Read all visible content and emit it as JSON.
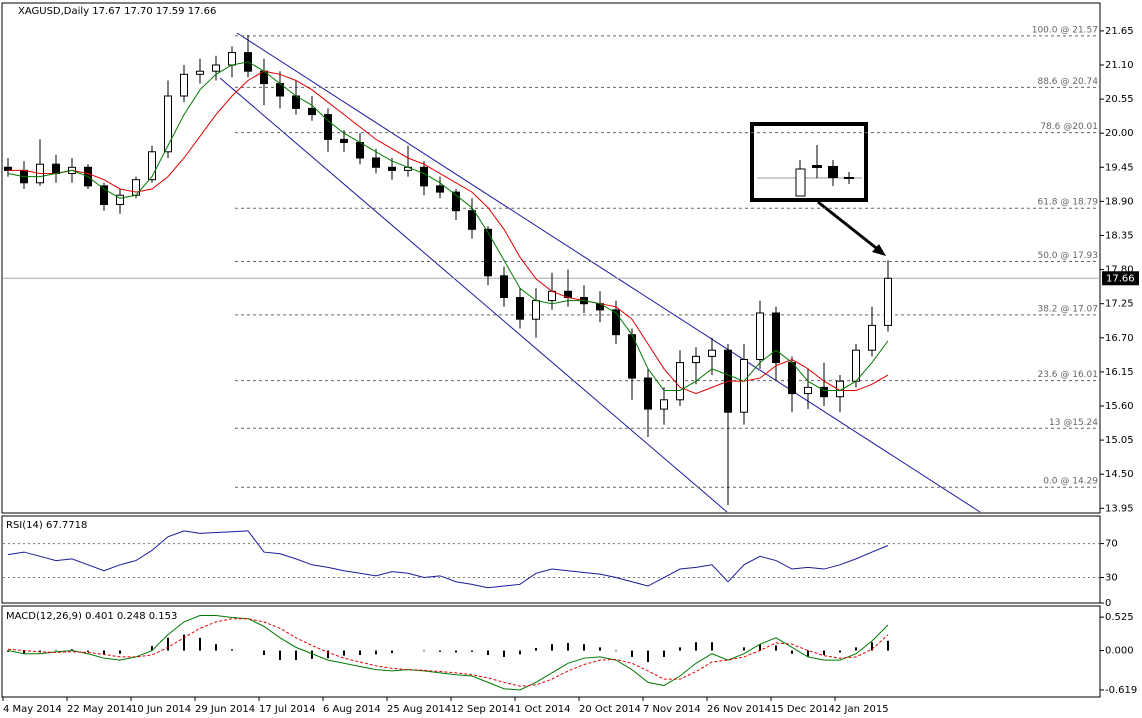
{
  "chart_data": [
    {
      "type": "candlestick",
      "title": "XAGUSD,Daily  17.67 17.70 17.59 17.66",
      "categories": [
        "4 May 2014",
        null,
        null,
        null,
        "22 May 2014",
        null,
        null,
        null,
        "10 Jun 2014",
        null,
        null,
        null,
        "29 Jun 2014",
        null,
        null,
        null,
        "17 Jul 2014",
        null,
        null,
        null,
        "6 Aug 2014",
        null,
        null,
        null,
        "25 Aug 2014",
        null,
        null,
        null,
        "12 Sep 2014",
        null,
        null,
        null,
        "1 Oct 2014",
        null,
        null,
        null,
        "20 Oct 2014",
        null,
        null,
        null,
        "7 Nov 2014",
        null,
        null,
        null,
        "26 Nov 2014",
        null,
        null,
        null,
        "15 Dec 2014",
        null,
        null,
        null,
        "2 Jan 2015",
        null,
        null,
        null
      ],
      "open": [
        19.45,
        19.4,
        19.2,
        19.5,
        19.35,
        19.45,
        19.15,
        18.85,
        19.0,
        19.25,
        19.7,
        20.6,
        20.95,
        21.0,
        21.1,
        21.3,
        21.0,
        20.8,
        20.6,
        20.4,
        20.3,
        19.9,
        19.85,
        19.6,
        19.45,
        19.4,
        19.45,
        19.15,
        19.05,
        18.75,
        18.45,
        17.7,
        17.35,
        17.0,
        17.3,
        17.45,
        17.35,
        17.25,
        17.15,
        16.75,
        16.05,
        15.55,
        15.7,
        16.3,
        16.4,
        16.5,
        15.5,
        16.35,
        17.1,
        16.3,
        15.8,
        15.9,
        15.75,
        16.0,
        16.5,
        16.9
      ],
      "high": [
        19.6,
        19.55,
        19.9,
        19.65,
        19.6,
        19.5,
        19.2,
        19.1,
        19.3,
        19.8,
        20.85,
        21.1,
        21.2,
        21.25,
        21.4,
        21.58,
        21.2,
        21.0,
        20.85,
        20.6,
        20.4,
        20.05,
        20.0,
        19.75,
        19.6,
        19.8,
        19.55,
        19.3,
        19.1,
        18.95,
        18.5,
        17.85,
        17.5,
        17.5,
        17.75,
        17.8,
        17.55,
        17.45,
        17.3,
        16.85,
        16.2,
        15.9,
        16.5,
        16.55,
        16.7,
        16.6,
        16.6,
        17.3,
        17.2,
        16.4,
        16.2,
        16.3,
        16.1,
        16.6,
        17.2,
        17.95
      ],
      "low": [
        19.3,
        19.1,
        19.15,
        19.2,
        19.2,
        19.1,
        18.75,
        18.7,
        18.95,
        19.2,
        19.6,
        20.5,
        20.8,
        20.85,
        20.9,
        20.9,
        20.45,
        20.4,
        20.3,
        20.2,
        19.7,
        19.7,
        19.5,
        19.35,
        19.25,
        19.3,
        19.0,
        18.95,
        18.6,
        18.3,
        17.55,
        17.2,
        16.85,
        16.7,
        17.15,
        17.2,
        17.1,
        16.95,
        16.6,
        15.7,
        15.1,
        15.3,
        15.6,
        15.95,
        16.1,
        14.0,
        15.3,
        16.2,
        16.0,
        15.5,
        15.55,
        15.6,
        15.5,
        15.9,
        16.4,
        16.8
      ],
      "close": [
        19.4,
        19.2,
        19.5,
        19.35,
        19.45,
        19.15,
        18.85,
        19.0,
        19.25,
        19.7,
        20.6,
        20.95,
        21.0,
        21.1,
        21.3,
        21.0,
        20.8,
        20.6,
        20.4,
        20.3,
        19.9,
        19.85,
        19.6,
        19.45,
        19.4,
        19.45,
        19.15,
        19.05,
        18.75,
        18.45,
        17.7,
        17.35,
        17.0,
        17.3,
        17.45,
        17.35,
        17.25,
        17.15,
        16.75,
        16.05,
        15.55,
        15.7,
        16.3,
        16.4,
        16.5,
        15.5,
        16.35,
        17.1,
        16.3,
        15.8,
        15.9,
        15.75,
        16.0,
        16.5,
        16.9,
        17.66
      ],
      "series": [
        {
          "color": "#e00000",
          "values": [
            19.4,
            19.4,
            19.35,
            19.35,
            19.4,
            19.35,
            19.25,
            19.1,
            19.05,
            19.1,
            19.3,
            19.6,
            19.95,
            20.3,
            20.6,
            20.85,
            21.0,
            20.95,
            20.85,
            20.7,
            20.5,
            20.3,
            20.1,
            19.9,
            19.75,
            19.6,
            19.5,
            19.35,
            19.2,
            19.05,
            18.8,
            18.45,
            18.0,
            17.65,
            17.45,
            17.35,
            17.3,
            17.25,
            17.2,
            17.0,
            16.6,
            16.2,
            15.9,
            15.8,
            15.9,
            16.0,
            16.0,
            16.05,
            16.25,
            16.35,
            16.2,
            16.0,
            15.85,
            15.85,
            15.95,
            16.1
          ]
        },
        {
          "color": "#007a00",
          "values": [
            19.35,
            19.3,
            19.3,
            19.35,
            19.4,
            19.3,
            19.1,
            18.95,
            19.0,
            19.3,
            19.8,
            20.3,
            20.7,
            20.95,
            21.1,
            21.15,
            21.0,
            20.8,
            20.6,
            20.45,
            20.2,
            20.0,
            19.85,
            19.7,
            19.55,
            19.45,
            19.35,
            19.2,
            19.0,
            18.8,
            18.4,
            17.95,
            17.5,
            17.3,
            17.25,
            17.3,
            17.3,
            17.25,
            17.1,
            16.75,
            16.2,
            15.85,
            15.85,
            16.0,
            16.2,
            16.1,
            16.0,
            16.3,
            16.5,
            16.3,
            16.0,
            15.85,
            15.85,
            16.0,
            16.3,
            16.65
          ]
        }
      ],
      "levels": [
        {
          "value": 21.57,
          "label": "100.0 @ 21.57"
        },
        {
          "value": 20.74,
          "label": "88.6 @ 20.74"
        },
        {
          "value": 20.01,
          "label": "78.6 @20.01"
        },
        {
          "value": 18.79,
          "label": "61.8 @ 18.79"
        },
        {
          "value": 17.93,
          "label": "50.0 @ 17.93"
        },
        {
          "value": 17.07,
          "label": "38.2 @ 17.07"
        },
        {
          "value": 16.01,
          "label": "23.6 @ 16.01"
        },
        {
          "value": 15.24,
          "label": "13 @15.24"
        },
        {
          "value": 14.29,
          "label": "0.0 @ 14.29"
        }
      ],
      "last_price": 17.66,
      "ylim": [
        13.89,
        22.1
      ],
      "yticks": [
        21.65,
        {
          "value": 21.1,
          "label": "21.10"
        },
        20.55,
        {
          "value": 20,
          "label": "20.00"
        },
        19.45,
        {
          "value": 18.9,
          "label": "18.90"
        },
        18.35,
        {
          "value": 17.8,
          "label": "17.80"
        },
        17.25,
        {
          "value": 16.7,
          "label": "16.70"
        },
        16.15,
        {
          "value": 15.6,
          "label": "15.60"
        },
        15.05,
        {
          "value": 14.5,
          "label": "14.50"
        },
        13.95
      ],
      "grid": false
    },
    {
      "type": "line",
      "title": "RSI(14) 67.7718",
      "series": [
        {
          "color": "#1a1a9c",
          "values": [
            57,
            60,
            55,
            50,
            52,
            45,
            38,
            45,
            50,
            62,
            78,
            85,
            82,
            83,
            84,
            85,
            60,
            58,
            52,
            45,
            42,
            38,
            35,
            32,
            37,
            35,
            30,
            32,
            25,
            22,
            18,
            20,
            22,
            35,
            40,
            38,
            36,
            34,
            30,
            25,
            20,
            30,
            40,
            42,
            45,
            25,
            45,
            55,
            50,
            40,
            42,
            40,
            45,
            52,
            60,
            67.7718
          ]
        }
      ],
      "ylim": [
        0,
        102.5
      ],
      "yticks": [
        70,
        30,
        0
      ],
      "grid": true
    },
    {
      "type": "macd",
      "title": "MACD(12,26,9) 0.401 0.248 0.153",
      "histogram": {
        "color": "#000000",
        "values": [
          -0.02,
          -0.05,
          -0.03,
          0.01,
          0.02,
          -0.02,
          -0.06,
          -0.05,
          0.0,
          0.07,
          0.2,
          0.25,
          0.2,
          0.1,
          0.02,
          0.0,
          -0.07,
          -0.15,
          -0.15,
          -0.13,
          -0.12,
          -0.08,
          -0.07,
          -0.06,
          -0.04,
          0.0,
          -0.01,
          -0.02,
          -0.03,
          -0.02,
          -0.07,
          -0.1,
          -0.06,
          0.04,
          0.1,
          0.12,
          0.1,
          0.05,
          -0.01,
          -0.1,
          -0.18,
          -0.1,
          0.05,
          0.13,
          0.13,
          0.0,
          0.05,
          0.1,
          0.08,
          -0.05,
          -0.1,
          -0.07,
          -0.03,
          0.05,
          0.13,
          0.153
        ]
      },
      "series": [
        {
          "color": "#007a00",
          "values": [
            0.0,
            -0.05,
            -0.05,
            -0.02,
            0.0,
            -0.05,
            -0.12,
            -0.15,
            -0.1,
            0.0,
            0.25,
            0.45,
            0.55,
            0.55,
            0.52,
            0.5,
            0.38,
            0.2,
            0.05,
            -0.05,
            -0.15,
            -0.2,
            -0.25,
            -0.3,
            -0.32,
            -0.3,
            -0.32,
            -0.35,
            -0.38,
            -0.4,
            -0.5,
            -0.6,
            -0.62,
            -0.5,
            -0.35,
            -0.2,
            -0.12,
            -0.1,
            -0.15,
            -0.3,
            -0.5,
            -0.55,
            -0.4,
            -0.2,
            -0.05,
            -0.15,
            -0.05,
            0.1,
            0.2,
            0.05,
            -0.1,
            -0.15,
            -0.15,
            -0.05,
            0.15,
            0.401
          ]
        },
        {
          "color": "#e00000",
          "dashed": true,
          "values": [
            0.02,
            0.0,
            -0.02,
            -0.03,
            -0.02,
            -0.03,
            -0.06,
            -0.1,
            -0.1,
            -0.07,
            0.05,
            0.2,
            0.35,
            0.45,
            0.5,
            0.5,
            0.45,
            0.35,
            0.2,
            0.08,
            -0.03,
            -0.12,
            -0.18,
            -0.24,
            -0.28,
            -0.3,
            -0.31,
            -0.33,
            -0.35,
            -0.38,
            -0.43,
            -0.5,
            -0.56,
            -0.54,
            -0.45,
            -0.32,
            -0.22,
            -0.15,
            -0.14,
            -0.2,
            -0.32,
            -0.45,
            -0.45,
            -0.33,
            -0.18,
            -0.15,
            -0.1,
            0.0,
            0.12,
            0.1,
            0.0,
            -0.08,
            -0.12,
            -0.1,
            0.02,
            0.248
          ]
        }
      ],
      "ylim": [
        -0.73,
        0.7
      ],
      "yticks": [
        0.525,
        {
          "value": 0,
          "label": "0.000"
        },
        -0.619
      ],
      "grid": false
    }
  ]
}
